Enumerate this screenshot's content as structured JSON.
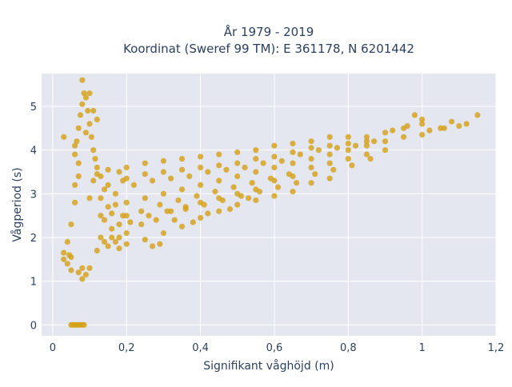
{
  "chart_data": {
    "type": "scatter",
    "title_line1": "År 1979 - 2019",
    "title_line2": "Koordinat (Sweref 99 TM): E 361178, N 6201442",
    "xlabel": "Signifikant våghöjd (m)",
    "ylabel": "Vågperiod (s)",
    "xlim": [
      -0.03,
      1.2
    ],
    "ylim": [
      -0.25,
      5.75
    ],
    "x_ticks": [
      {
        "value": 0,
        "label": "0"
      },
      {
        "value": 0.2,
        "label": "0,2"
      },
      {
        "value": 0.4,
        "label": "0,4"
      },
      {
        "value": 0.6,
        "label": "0,6"
      },
      {
        "value": 0.8,
        "label": "0,8"
      },
      {
        "value": 1.0,
        "label": "1"
      },
      {
        "value": 1.2,
        "label": "1,2"
      }
    ],
    "y_ticks": [
      {
        "value": 0,
        "label": "0"
      },
      {
        "value": 1,
        "label": "1"
      },
      {
        "value": 2,
        "label": "2"
      },
      {
        "value": 3,
        "label": "3"
      },
      {
        "value": 4,
        "label": "4"
      },
      {
        "value": 5,
        "label": "5"
      }
    ],
    "grid": true,
    "marker_color": "#d4a017",
    "plot_bg": "#e5e7f0",
    "series": [
      {
        "points": [
          [
            0.05,
            0.0
          ],
          [
            0.055,
            0.0
          ],
          [
            0.06,
            0.0
          ],
          [
            0.065,
            0.0
          ],
          [
            0.07,
            0.0
          ],
          [
            0.075,
            0.0
          ],
          [
            0.08,
            0.0
          ],
          [
            0.085,
            0.0
          ],
          [
            0.06,
            3.9
          ],
          [
            0.065,
            4.2
          ],
          [
            0.07,
            4.5
          ],
          [
            0.075,
            4.8
          ],
          [
            0.08,
            5.05
          ],
          [
            0.085,
            5.3
          ],
          [
            0.09,
            5.2
          ],
          [
            0.095,
            4.9
          ],
          [
            0.1,
            4.6
          ],
          [
            0.105,
            4.3
          ],
          [
            0.11,
            4.0
          ],
          [
            0.115,
            3.8
          ],
          [
            0.12,
            3.6
          ],
          [
            0.08,
            5.6
          ],
          [
            0.1,
            5.3
          ],
          [
            0.09,
            4.4
          ],
          [
            0.07,
            3.7
          ],
          [
            0.11,
            4.9
          ],
          [
            0.12,
            4.7
          ],
          [
            0.06,
            4.1
          ],
          [
            0.03,
            4.3
          ],
          [
            0.03,
            1.5
          ],
          [
            0.03,
            1.65
          ],
          [
            0.04,
            1.4
          ],
          [
            0.04,
            1.9
          ],
          [
            0.05,
            2.3
          ],
          [
            0.05,
            1.55
          ],
          [
            0.06,
            2.8
          ],
          [
            0.06,
            3.2
          ],
          [
            0.07,
            3.4
          ],
          [
            0.07,
            1.2
          ],
          [
            0.08,
            1.05
          ],
          [
            0.08,
            1.3
          ],
          [
            0.09,
            1.15
          ],
          [
            0.1,
            1.3
          ],
          [
            0.1,
            2.9
          ],
          [
            0.11,
            3.3
          ],
          [
            0.12,
            3.45
          ],
          [
            0.05,
            1.25
          ],
          [
            0.045,
            1.6
          ],
          [
            0.12,
            1.7
          ],
          [
            0.14,
            1.9
          ],
          [
            0.16,
            2.0
          ],
          [
            0.18,
            2.0
          ],
          [
            0.2,
            2.1
          ],
          [
            0.24,
            2.3
          ],
          [
            0.28,
            2.4
          ],
          [
            0.32,
            2.6
          ],
          [
            0.36,
            2.7
          ],
          [
            0.4,
            2.8
          ],
          [
            0.45,
            2.9
          ],
          [
            0.5,
            3.0
          ],
          [
            0.55,
            3.1
          ],
          [
            0.6,
            3.3
          ],
          [
            0.65,
            3.4
          ],
          [
            0.7,
            3.6
          ],
          [
            0.75,
            3.7
          ],
          [
            0.8,
            3.8
          ],
          [
            0.85,
            3.9
          ],
          [
            0.9,
            4.0
          ],
          [
            0.13,
            3.4
          ],
          [
            0.18,
            3.5
          ],
          [
            0.2,
            3.6
          ],
          [
            0.25,
            3.7
          ],
          [
            0.3,
            3.75
          ],
          [
            0.35,
            3.8
          ],
          [
            0.4,
            3.85
          ],
          [
            0.45,
            3.9
          ],
          [
            0.5,
            3.95
          ],
          [
            0.55,
            4.0
          ],
          [
            0.6,
            4.1
          ],
          [
            0.65,
            4.15
          ],
          [
            0.7,
            4.2
          ],
          [
            0.75,
            4.3
          ],
          [
            0.8,
            4.3
          ],
          [
            0.85,
            4.3
          ],
          [
            0.9,
            4.4
          ],
          [
            0.95,
            4.5
          ],
          [
            0.15,
            2.7
          ],
          [
            0.2,
            2.8
          ],
          [
            0.25,
            2.9
          ],
          [
            0.3,
            3.0
          ],
          [
            0.35,
            3.1
          ],
          [
            0.4,
            3.2
          ],
          [
            0.45,
            3.3
          ],
          [
            0.5,
            3.4
          ],
          [
            0.55,
            3.5
          ],
          [
            0.6,
            3.6
          ],
          [
            0.65,
            3.7
          ],
          [
            0.7,
            3.8
          ],
          [
            0.75,
            3.9
          ],
          [
            0.8,
            4.0
          ],
          [
            0.85,
            4.1
          ],
          [
            0.9,
            4.2
          ],
          [
            0.17,
            3.0
          ],
          [
            0.22,
            3.2
          ],
          [
            0.27,
            3.3
          ],
          [
            0.32,
            3.35
          ],
          [
            0.37,
            3.4
          ],
          [
            0.42,
            3.5
          ],
          [
            0.47,
            3.55
          ],
          [
            0.52,
            3.6
          ],
          [
            0.57,
            3.7
          ],
          [
            0.62,
            3.75
          ],
          [
            0.67,
            3.9
          ],
          [
            0.72,
            4.0
          ],
          [
            0.77,
            4.05
          ],
          [
            0.82,
            4.1
          ],
          [
            0.87,
            4.2
          ],
          [
            0.14,
            2.4
          ],
          [
            0.19,
            2.5
          ],
          [
            0.24,
            2.6
          ],
          [
            0.29,
            2.75
          ],
          [
            0.34,
            2.85
          ],
          [
            0.39,
            2.95
          ],
          [
            0.44,
            3.05
          ],
          [
            0.49,
            3.15
          ],
          [
            0.54,
            3.25
          ],
          [
            0.59,
            3.35
          ],
          [
            0.64,
            3.45
          ],
          [
            0.18,
            1.75
          ],
          [
            0.2,
            1.85
          ],
          [
            0.25,
            1.95
          ],
          [
            0.3,
            2.1
          ],
          [
            0.35,
            2.25
          ],
          [
            0.4,
            2.45
          ],
          [
            0.45,
            2.6
          ],
          [
            0.5,
            2.75
          ],
          [
            0.55,
            2.85
          ],
          [
            0.6,
            2.95
          ],
          [
            0.65,
            3.05
          ],
          [
            0.7,
            3.25
          ],
          [
            0.75,
            3.35
          ],
          [
            0.27,
            1.8
          ],
          [
            0.29,
            1.85
          ],
          [
            0.33,
            2.4
          ],
          [
            0.38,
            2.35
          ],
          [
            0.42,
            2.55
          ],
          [
            0.48,
            2.65
          ],
          [
            0.53,
            2.9
          ],
          [
            0.95,
            4.3
          ],
          [
            1.0,
            4.35
          ],
          [
            1.0,
            4.6
          ],
          [
            1.05,
            4.5
          ],
          [
            1.08,
            4.65
          ],
          [
            1.1,
            4.55
          ],
          [
            1.12,
            4.6
          ],
          [
            1.15,
            4.8
          ],
          [
            1.02,
            4.45
          ],
          [
            0.98,
            4.8
          ],
          [
            1.0,
            4.7
          ],
          [
            0.92,
            4.45
          ],
          [
            0.96,
            4.55
          ],
          [
            1.06,
            4.5
          ],
          [
            0.15,
            3.55
          ],
          [
            0.2,
            3.35
          ],
          [
            0.25,
            3.45
          ],
          [
            0.3,
            3.5
          ],
          [
            0.35,
            3.55
          ],
          [
            0.4,
            3.6
          ],
          [
            0.45,
            3.65
          ],
          [
            0.5,
            3.7
          ],
          [
            0.55,
            3.8
          ],
          [
            0.6,
            3.85
          ],
          [
            0.65,
            3.95
          ],
          [
            0.7,
            4.05
          ],
          [
            0.75,
            4.1
          ],
          [
            0.8,
            4.15
          ],
          [
            0.85,
            4.2
          ],
          [
            0.16,
            2.2
          ],
          [
            0.21,
            2.35
          ],
          [
            0.26,
            2.5
          ],
          [
            0.31,
            2.6
          ],
          [
            0.36,
            2.65
          ],
          [
            0.41,
            2.75
          ],
          [
            0.46,
            2.85
          ],
          [
            0.51,
            2.95
          ],
          [
            0.56,
            3.05
          ],
          [
            0.61,
            3.15
          ],
          [
            0.66,
            3.25
          ],
          [
            0.71,
            3.45
          ],
          [
            0.76,
            3.55
          ],
          [
            0.81,
            3.65
          ],
          [
            0.86,
            3.8
          ],
          [
            0.13,
            2.0
          ],
          [
            0.13,
            2.5
          ],
          [
            0.13,
            2.9
          ],
          [
            0.14,
            3.1
          ],
          [
            0.15,
            1.8
          ],
          [
            0.15,
            3.2
          ],
          [
            0.16,
            2.55
          ],
          [
            0.17,
            1.9
          ],
          [
            0.17,
            2.75
          ],
          [
            0.18,
            2.3
          ],
          [
            0.19,
            3.3
          ],
          [
            0.2,
            2.5
          ]
        ]
      }
    ]
  }
}
